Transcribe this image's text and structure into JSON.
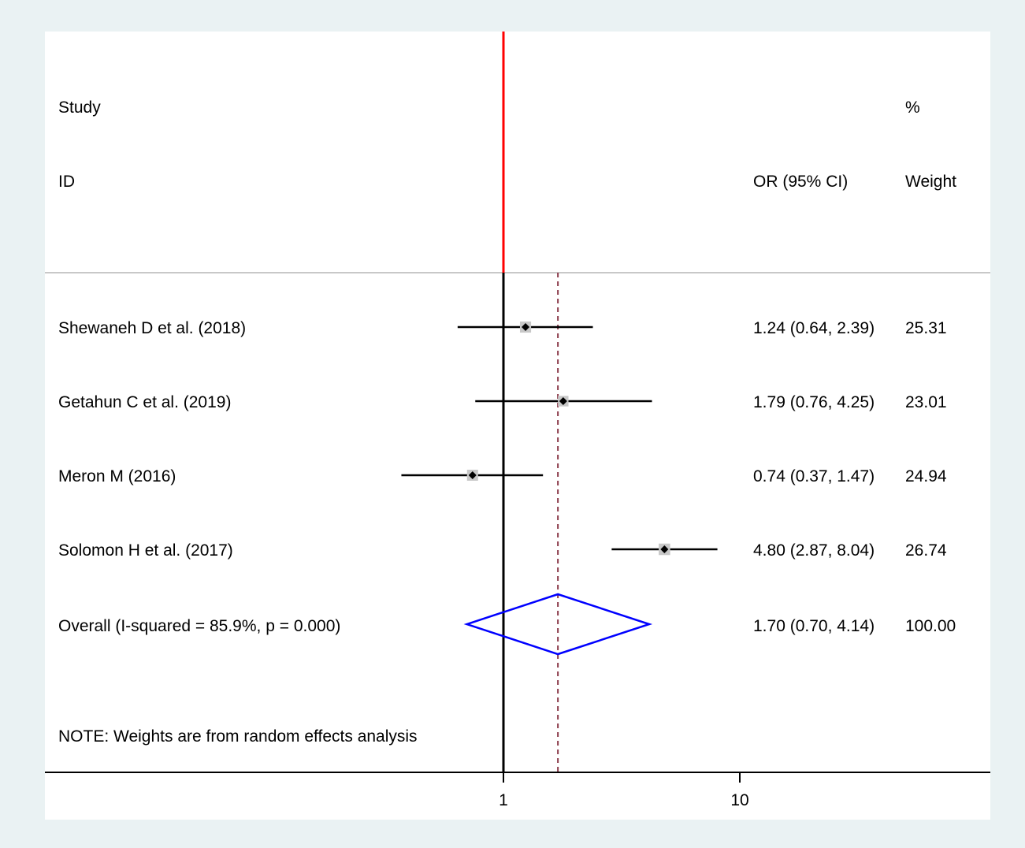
{
  "header": {
    "study_label": "Study",
    "id_label": "ID",
    "percent_label": "%",
    "or_label": "OR (95% CI)",
    "weight_label": "Weight"
  },
  "chart_data": {
    "type": "forest",
    "scale": "log",
    "xlim": [
      0.1,
      40
    ],
    "xticks": [
      1,
      10
    ],
    "xtick_labels": [
      "1",
      "10"
    ],
    "null_line": 1,
    "studies": [
      {
        "id": "Shewaneh D et al. (2018)",
        "or": 1.24,
        "lo": 0.64,
        "hi": 2.39,
        "or_text": "1.24 (0.64, 2.39)",
        "weight": 25.31,
        "weight_text": "25.31"
      },
      {
        "id": "Getahun C et al. (2019)",
        "or": 1.79,
        "lo": 0.76,
        "hi": 4.25,
        "or_text": "1.79 (0.76, 4.25)",
        "weight": 23.01,
        "weight_text": "23.01"
      },
      {
        "id": "Meron M (2016)",
        "or": 0.74,
        "lo": 0.37,
        "hi": 1.47,
        "or_text": "0.74 (0.37, 1.47)",
        "weight": 24.94,
        "weight_text": "24.94"
      },
      {
        "id": "Solomon H et al. (2017)",
        "or": 4.8,
        "lo": 2.87,
        "hi": 8.04,
        "or_text": "4.80 (2.87, 8.04)",
        "weight": 26.74,
        "weight_text": "26.74"
      }
    ],
    "overall": {
      "label": "Overall  (I-squared = 85.9%, p = 0.000)",
      "or": 1.7,
      "lo": 0.7,
      "hi": 4.14,
      "or_text": "1.70 (0.70, 4.14)",
      "weight_text": "100.00"
    },
    "note": "NOTE: Weights are from random effects analysis",
    "colors": {
      "null_line_top": "#ff0000",
      "null_line": "#000000",
      "overall_line": "#8b3a4a",
      "diamond": "#0000ff",
      "weight_box": "#c8c8c8",
      "ci_line": "#000000"
    }
  }
}
